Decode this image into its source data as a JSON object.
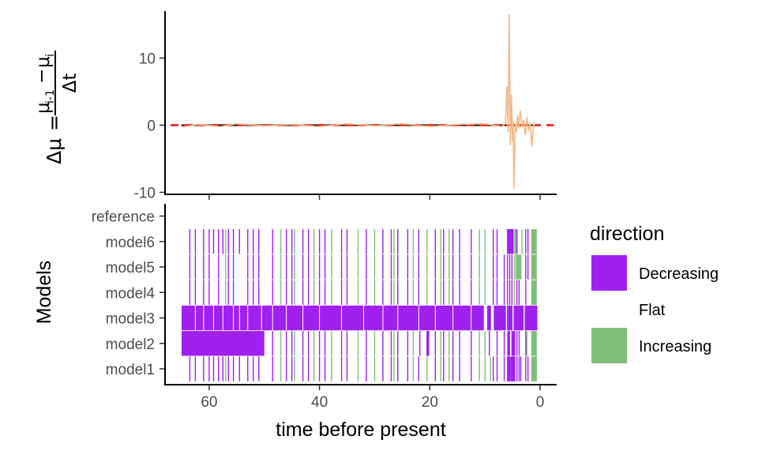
{
  "chart_data": [
    {
      "type": "line",
      "panel": "top",
      "ylabel_parts": {
        "lhs": "Δμ",
        "eq": "=",
        "num_a": "μ",
        "num_a_sub": "i-1",
        "minus": "−",
        "num_b": "μ",
        "num_b_sub": "i",
        "den": "Δt"
      },
      "xlim": [
        68,
        -3
      ],
      "ylim": [
        -10.3,
        17
      ],
      "yticks": [
        {
          "value": 10,
          "label": "10"
        },
        {
          "value": 0,
          "label": "0"
        },
        {
          "value": -10,
          "label": "-10"
        }
      ],
      "reference_line": {
        "y": 0,
        "style": "dashed",
        "color": "#e8221c"
      },
      "zero_line": {
        "y": 0,
        "color": "#000000"
      },
      "series": [
        {
          "color": "#f4b886",
          "x": [
            65,
            62,
            58,
            55,
            50,
            45,
            40,
            35,
            30,
            25,
            20,
            15,
            10,
            7,
            6.3,
            6.0,
            5.8,
            5.6,
            5.4,
            5.2,
            5.0,
            4.9,
            4.7,
            4.5,
            4.3,
            4.1,
            3.9,
            3.6,
            3.3,
            3.0,
            2.7,
            2.4,
            2.1,
            1.8,
            1.5,
            1.2,
            1.0
          ],
          "values": [
            -0.3,
            0.1,
            -0.2,
            0.2,
            -0.1,
            0.1,
            -0.2,
            0.2,
            -0.1,
            0.2,
            -0.2,
            0.1,
            0.2,
            -0.2,
            0.2,
            5.8,
            -1.0,
            16.5,
            -3.0,
            4.5,
            -2.5,
            0.6,
            -9.5,
            0.3,
            -1.0,
            1.5,
            -0.5,
            2.2,
            -0.3,
            0.8,
            -1.5,
            1.2,
            -0.8,
            0.4,
            -3.2,
            0.3,
            0.0
          ]
        }
      ]
    },
    {
      "type": "heatmap",
      "panel": "bottom",
      "ylabel": "Models",
      "xlabel": "time before present",
      "xlim": [
        68,
        -3
      ],
      "xticks": [
        {
          "value": 60,
          "label": "60"
        },
        {
          "value": 40,
          "label": "40"
        },
        {
          "value": 20,
          "label": "20"
        },
        {
          "value": 0,
          "label": "0"
        }
      ],
      "categories": [
        "model1",
        "model2",
        "model3",
        "model4",
        "model5",
        "model6",
        "reference"
      ],
      "legend": {
        "title": "direction",
        "position": "right",
        "entries": [
          {
            "label": "Decreasing",
            "color": "#a020f0"
          },
          {
            "label": "Flat",
            "color": "#ffffff"
          },
          {
            "label": "Increasing",
            "color": "#7fbf7b"
          }
        ]
      },
      "rows": {
        "model1": {
          "decreasing_x": [
            63.5,
            62.5,
            61,
            60,
            59.2,
            58.3,
            57.5,
            56.5,
            55.6,
            54.5,
            53,
            52,
            51,
            48.5,
            46,
            45,
            43,
            42,
            40,
            39,
            36,
            35,
            31.5,
            28.5,
            27,
            25.8,
            24,
            22,
            19,
            17.5,
            15.8,
            14.6,
            12.5,
            8.5,
            7.8,
            6.5,
            5.9,
            5.5,
            5.3,
            5.1,
            4.9,
            4.2,
            3.8,
            3.5,
            2.6,
            2.2
          ],
          "increasing_x": [
            57,
            47,
            44.5,
            41,
            37.8,
            33,
            30,
            26.5,
            23,
            20.5,
            18,
            16.5,
            11,
            10,
            9,
            4.6,
            1.4,
            1.1,
            0.9,
            0.7
          ],
          "blocks": [
            {
              "start": 5.95,
              "end": 5.45,
              "dir": "Decreasing"
            },
            {
              "start": 5.2,
              "end": 4.5,
              "dir": "Decreasing"
            },
            {
              "start": 1.6,
              "end": 0.6,
              "dir": "Increasing"
            }
          ]
        },
        "model2": {
          "decreasing_x": [
            48.5,
            46,
            45,
            43,
            42,
            40,
            39,
            36,
            35,
            31.5,
            28.5,
            27,
            25.8,
            24,
            21.8,
            19,
            17.5,
            15.8,
            14.6,
            12.5,
            9.2,
            7.8,
            6.5,
            4.2,
            3.8,
            2.6
          ],
          "increasing_x": [
            47,
            44.5,
            41,
            37.8,
            33,
            30,
            26.5,
            23,
            20.5,
            18,
            16.5,
            11,
            10,
            2.4
          ],
          "blocks": [
            {
              "start": 65,
              "end": 50,
              "dir": "Decreasing"
            },
            {
              "start": 20.6,
              "end": 20.1,
              "dir": "Decreasing"
            },
            {
              "start": 5.95,
              "end": 5.45,
              "dir": "Decreasing"
            },
            {
              "start": 5.2,
              "end": 4.5,
              "dir": "Decreasing"
            },
            {
              "start": 1.6,
              "end": 0.6,
              "dir": "Increasing"
            }
          ]
        },
        "model3": {
          "decreasing_x": [],
          "increasing_x": [],
          "blocks": [
            {
              "start": 65,
              "end": 10.2,
              "dir": "Decreasing"
            },
            {
              "start": 9.6,
              "end": 8.9,
              "dir": "Decreasing"
            },
            {
              "start": 8.4,
              "end": 6.2,
              "dir": "Decreasing"
            },
            {
              "start": 6.0,
              "end": 5.0,
              "dir": "Decreasing"
            },
            {
              "start": 4.8,
              "end": 3.0,
              "dir": "Decreasing"
            },
            {
              "start": 2.8,
              "end": 0.5,
              "dir": "Decreasing"
            }
          ]
        },
        "model4": {
          "decreasing_x": [
            63.5,
            62.5,
            61,
            60,
            58.3,
            56.5,
            55.6,
            53,
            52,
            51,
            48.5,
            46,
            45,
            43,
            42,
            40,
            39,
            36,
            35,
            31.5,
            28.5,
            27,
            25.8,
            24,
            22,
            19,
            17.5,
            15.8,
            14.6,
            12.5,
            8.5,
            7.8,
            6.5,
            5.9,
            5.5,
            5.1,
            4.2,
            3.8,
            2.6
          ],
          "increasing_x": [
            57,
            47,
            44.5,
            41,
            37.8,
            33,
            30,
            26.5,
            23,
            20.5,
            18,
            16.5,
            11,
            10,
            4.6,
            1.4,
            1.1,
            0.9
          ],
          "blocks": [
            {
              "start": 1.6,
              "end": 0.6,
              "dir": "Increasing"
            }
          ]
        },
        "model5": {
          "decreasing_x": [
            63.5,
            62.5,
            61,
            60,
            58.3,
            56.5,
            55.6,
            53,
            52,
            51,
            48.5,
            46,
            45,
            43,
            42,
            40,
            39,
            36,
            35,
            31.5,
            28.5,
            27,
            25.8,
            24,
            22,
            19,
            17.5,
            15.8,
            14.6,
            12.5,
            8.5,
            7.8,
            6.5,
            5.9,
            5.5,
            5.1,
            2.6,
            2.2
          ],
          "increasing_x": [
            57,
            47,
            44.5,
            41,
            37.8,
            33,
            30,
            26.5,
            23,
            20.5,
            18,
            16.5,
            11,
            10,
            4.6
          ],
          "blocks": [
            {
              "start": 4.4,
              "end": 3.4,
              "dir": "Increasing"
            },
            {
              "start": 1.6,
              "end": 0.6,
              "dir": "Increasing"
            }
          ]
        },
        "model6": {
          "decreasing_x": [
            63.5,
            62.5,
            61,
            60,
            59.2,
            58.3,
            57.5,
            56.5,
            55.6,
            54.5,
            53,
            52,
            51,
            48.5,
            46,
            45,
            43,
            42,
            40,
            39,
            36,
            35,
            31.5,
            28.5,
            27,
            25.8,
            24,
            22,
            19,
            17.5,
            15.8,
            14.6,
            12.5,
            8.5,
            7.8,
            4.2,
            2.6,
            2.2
          ],
          "increasing_x": [
            57,
            47,
            44.5,
            41,
            37.8,
            33,
            30,
            26.5,
            23,
            20.5,
            18,
            16.5,
            11,
            10,
            3.3
          ],
          "blocks": [
            {
              "start": 6.0,
              "end": 4.8,
              "dir": "Decreasing"
            },
            {
              "start": 4.7,
              "end": 4.3,
              "dir": "Increasing"
            },
            {
              "start": 1.6,
              "end": 0.6,
              "dir": "Increasing"
            }
          ]
        },
        "reference": {
          "decreasing_x": [],
          "increasing_x": [],
          "blocks": []
        }
      }
    }
  ]
}
